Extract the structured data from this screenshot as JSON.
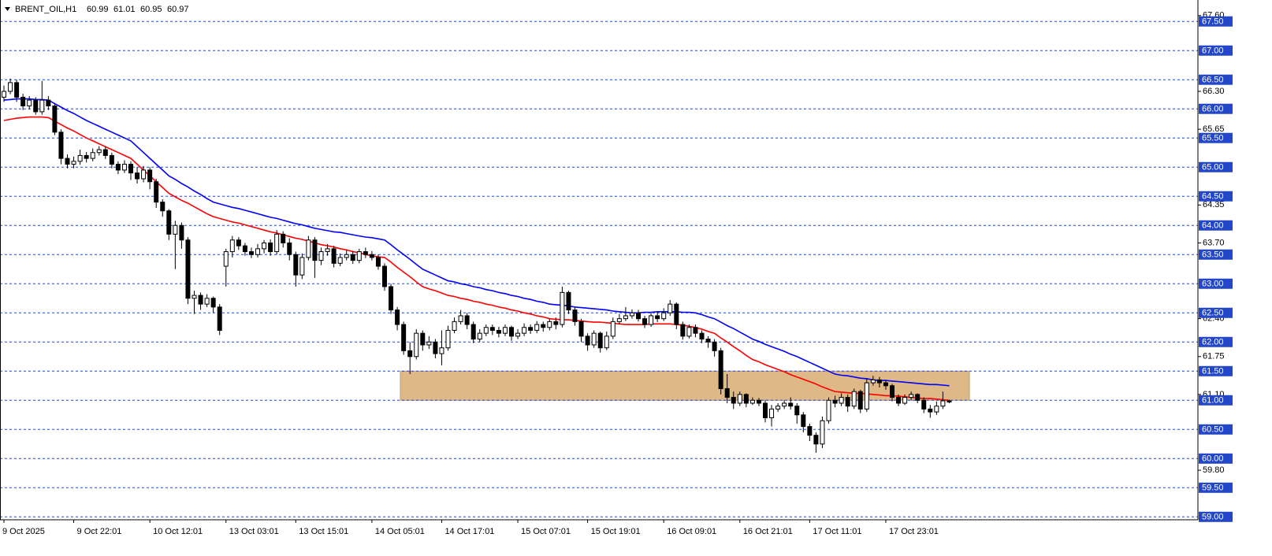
{
  "chart_data": {
    "type": "candlestick",
    "header": {
      "symbol": "BRENT_OIL,H1",
      "values": [
        60.99,
        61.01,
        60.95,
        60.97
      ]
    },
    "categories": [
      "9 Oct 2025",
      null,
      null,
      null,
      null,
      null,
      null,
      null,
      null,
      null,
      null,
      "9 Oct 22:01",
      null,
      null,
      null,
      null,
      null,
      null,
      null,
      null,
      null,
      null,
      null,
      "10 Oct 12:01",
      null,
      null,
      null,
      null,
      null,
      null,
      null,
      null,
      null,
      null,
      null,
      "13 Oct 03:01",
      null,
      null,
      null,
      null,
      null,
      null,
      null,
      null,
      null,
      null,
      "13 Oct 15:01",
      null,
      null,
      null,
      null,
      null,
      null,
      null,
      null,
      null,
      null,
      null,
      "14 Oct 05:01",
      null,
      null,
      null,
      null,
      null,
      null,
      null,
      null,
      null,
      null,
      "14 Oct 17:01",
      null,
      null,
      null,
      null,
      null,
      null,
      null,
      null,
      null,
      null,
      null,
      "15 Oct 07:01",
      null,
      null,
      null,
      null,
      null,
      null,
      null,
      null,
      null,
      null,
      "15 Oct 19:01",
      null,
      null,
      null,
      null,
      null,
      null,
      null,
      null,
      null,
      null,
      null,
      "16 Oct 09:01",
      null,
      null,
      null,
      null,
      null,
      null,
      null,
      null,
      null,
      null,
      null,
      "16 Oct 21:01",
      null,
      null,
      null,
      null,
      null,
      null,
      null,
      null,
      null,
      null,
      "17 Oct 11:01",
      null,
      null,
      null,
      null,
      null,
      null,
      null,
      null,
      null,
      null,
      null,
      "17 Oct 23:01",
      null,
      null,
      null,
      null,
      null,
      null,
      null,
      null,
      null,
      null
    ],
    "open": [
      66.2,
      66.3,
      66.45,
      66.2,
      66.05,
      66.15,
      65.95,
      66.15,
      66.05,
      65.6,
      65.15,
      65.05,
      65.1,
      65.2,
      65.15,
      65.25,
      65.3,
      65.2,
      65.05,
      64.95,
      65.05,
      64.9,
      64.8,
      64.95,
      64.75,
      64.4,
      64.25,
      63.85,
      64.0,
      63.75,
      62.75,
      62.8,
      62.65,
      62.75,
      62.6,
      63.3,
      63.55,
      63.75,
      63.65,
      63.55,
      63.5,
      63.6,
      63.7,
      63.55,
      63.85,
      63.7,
      63.5,
      63.15,
      63.45,
      63.75,
      63.4,
      63.55,
      63.6,
      63.35,
      63.45,
      63.5,
      63.4,
      63.55,
      63.5,
      63.45,
      63.3,
      62.95,
      62.55,
      62.3,
      61.85,
      61.75,
      62.15,
      61.95,
      62.0,
      61.8,
      61.9,
      62.2,
      62.35,
      62.45,
      62.3,
      62.05,
      62.15,
      62.25,
      62.2,
      62.15,
      62.25,
      62.1,
      62.15,
      62.25,
      62.2,
      62.3,
      62.25,
      62.35,
      62.3,
      62.85,
      62.55,
      62.35,
      62.1,
      61.95,
      62.15,
      61.9,
      62.1,
      62.35,
      62.4,
      62.45,
      62.5,
      62.4,
      62.3,
      62.45,
      62.4,
      62.5,
      62.65,
      62.3,
      62.1,
      62.25,
      62.15,
      62.05,
      62.0,
      61.85,
      61.2,
      61.05,
      60.95,
      61.1,
      60.95,
      61.0,
      60.95,
      60.7,
      60.85,
      60.9,
      60.95,
      60.9,
      60.75,
      60.55,
      60.4,
      60.25,
      60.65,
      61.0,
      60.95,
      61.05,
      60.9,
      61.15,
      60.85,
      61.3,
      61.35,
      61.3,
      61.25,
      61.05,
      60.95,
      61.05,
      61.1,
      61.0,
      60.85,
      60.8,
      60.9,
      60.99
    ],
    "high": [
      66.4,
      66.52,
      66.5,
      66.26,
      66.22,
      66.2,
      66.48,
      66.22,
      66.1,
      65.65,
      65.22,
      65.18,
      65.3,
      65.26,
      65.32,
      65.36,
      65.36,
      65.25,
      65.1,
      65.12,
      65.1,
      65.0,
      65.02,
      65.0,
      64.8,
      64.45,
      64.28,
      64.08,
      64.05,
      63.8,
      62.88,
      62.85,
      62.82,
      62.78,
      62.65,
      63.6,
      63.82,
      63.8,
      63.7,
      63.62,
      63.68,
      63.75,
      63.76,
      63.92,
      63.9,
      63.78,
      63.55,
      63.52,
      63.82,
      63.8,
      63.62,
      63.68,
      63.65,
      63.52,
      63.58,
      63.56,
      63.6,
      63.62,
      63.56,
      63.5,
      63.35,
      63.0,
      62.6,
      62.35,
      62.0,
      62.22,
      62.2,
      62.1,
      62.05,
      62.2,
      62.28,
      62.42,
      62.55,
      62.5,
      62.35,
      62.22,
      62.3,
      62.3,
      62.26,
      62.3,
      62.28,
      62.22,
      62.32,
      62.3,
      62.36,
      62.35,
      62.4,
      62.42,
      62.95,
      62.88,
      62.6,
      62.4,
      62.15,
      62.2,
      62.18,
      62.18,
      62.42,
      62.48,
      62.6,
      62.56,
      62.55,
      62.45,
      62.5,
      62.52,
      62.58,
      62.72,
      62.68,
      62.35,
      62.3,
      62.3,
      62.2,
      62.1,
      62.05,
      61.9,
      61.45,
      61.15,
      61.15,
      61.12,
      61.05,
      61.04,
      61.0,
      60.92,
      60.95,
      61.0,
      61.05,
      60.95,
      60.8,
      60.6,
      60.45,
      60.72,
      61.05,
      61.08,
      61.12,
      61.1,
      61.2,
      61.18,
      61.38,
      61.42,
      61.4,
      61.35,
      61.28,
      61.1,
      61.1,
      61.15,
      61.12,
      61.05,
      60.92,
      60.98,
      61.15,
      61.01
    ],
    "low": [
      66.12,
      66.25,
      66.12,
      65.98,
      65.99,
      65.9,
      65.9,
      65.98,
      65.55,
      65.05,
      64.98,
      64.98,
      65.04,
      65.08,
      65.1,
      65.2,
      65.14,
      64.98,
      64.88,
      64.9,
      64.78,
      64.72,
      64.74,
      64.62,
      64.3,
      64.15,
      63.75,
      63.25,
      63.6,
      62.65,
      62.48,
      62.55,
      62.6,
      62.5,
      62.12,
      62.95,
      63.45,
      63.58,
      63.48,
      63.44,
      63.45,
      63.52,
      63.48,
      63.5,
      63.62,
      63.4,
      62.95,
      63.08,
      63.4,
      63.1,
      63.32,
      63.48,
      63.28,
      63.3,
      63.4,
      63.34,
      63.35,
      63.44,
      63.4,
      63.24,
      62.88,
      62.48,
      62.2,
      61.78,
      61.45,
      61.7,
      61.85,
      61.88,
      61.72,
      61.6,
      61.85,
      62.15,
      62.3,
      62.22,
      61.98,
      62.0,
      62.1,
      62.12,
      62.08,
      62.1,
      62.02,
      62.05,
      62.1,
      62.14,
      62.15,
      62.18,
      62.2,
      62.22,
      62.25,
      62.48,
      62.28,
      62.0,
      61.85,
      61.9,
      61.82,
      61.86,
      62.05,
      62.3,
      62.36,
      62.4,
      62.35,
      62.24,
      62.26,
      62.34,
      62.36,
      62.45,
      62.22,
      62.04,
      62.06,
      62.08,
      61.98,
      61.9,
      61.75,
      61.1,
      60.95,
      60.85,
      60.9,
      60.88,
      60.92,
      60.9,
      60.62,
      60.55,
      60.8,
      60.85,
      60.84,
      60.6,
      60.45,
      60.3,
      60.1,
      60.18,
      60.6,
      60.88,
      60.9,
      60.8,
      60.85,
      60.78,
      60.8,
      61.25,
      61.22,
      61.18,
      60.98,
      60.9,
      60.92,
      61.0,
      60.95,
      60.78,
      60.7,
      60.75,
      60.85,
      60.95
    ],
    "close": [
      66.3,
      66.45,
      66.2,
      66.05,
      66.15,
      65.95,
      66.15,
      66.05,
      65.6,
      65.15,
      65.05,
      65.1,
      65.2,
      65.15,
      65.25,
      65.3,
      65.2,
      65.05,
      64.95,
      65.05,
      64.9,
      64.8,
      64.95,
      64.75,
      64.4,
      64.25,
      63.85,
      64.0,
      63.75,
      62.75,
      62.8,
      62.65,
      62.75,
      62.6,
      62.2,
      63.55,
      63.75,
      63.65,
      63.55,
      63.5,
      63.6,
      63.7,
      63.55,
      63.85,
      63.7,
      63.5,
      63.15,
      63.45,
      63.75,
      63.4,
      63.55,
      63.6,
      63.35,
      63.45,
      63.5,
      63.4,
      63.55,
      63.5,
      63.45,
      63.3,
      62.95,
      62.55,
      62.3,
      61.85,
      61.75,
      62.15,
      61.95,
      62.0,
      61.8,
      61.9,
      62.2,
      62.35,
      62.45,
      62.3,
      62.05,
      62.15,
      62.25,
      62.2,
      62.15,
      62.25,
      62.1,
      62.15,
      62.25,
      62.2,
      62.3,
      62.25,
      62.35,
      62.3,
      62.85,
      62.55,
      62.35,
      62.1,
      61.95,
      62.15,
      61.9,
      62.1,
      62.35,
      62.4,
      62.45,
      62.5,
      62.4,
      62.3,
      62.45,
      62.4,
      62.5,
      62.65,
      62.3,
      62.1,
      62.25,
      62.15,
      62.05,
      62.0,
      61.85,
      61.2,
      61.05,
      60.95,
      61.1,
      60.95,
      61.0,
      60.95,
      60.7,
      60.85,
      60.9,
      60.95,
      60.9,
      60.75,
      60.55,
      60.4,
      60.25,
      60.65,
      61.0,
      60.95,
      61.05,
      60.9,
      61.15,
      60.85,
      61.3,
      61.35,
      61.3,
      61.25,
      61.05,
      60.95,
      61.05,
      61.1,
      61.0,
      60.85,
      60.8,
      60.9,
      60.99,
      60.97
    ],
    "lines": [
      {
        "color": "#0000ff",
        "values": [
          66.15,
          66.16,
          66.17,
          66.17,
          66.17,
          66.16,
          66.16,
          66.15,
          66.09,
          66.03,
          65.97,
          65.92,
          65.86,
          65.8,
          65.75,
          65.7,
          65.65,
          65.6,
          65.55,
          65.5,
          65.45,
          65.35,
          65.25,
          65.15,
          65.05,
          64.95,
          64.85,
          64.79,
          64.72,
          64.66,
          64.59,
          64.53,
          64.46,
          64.4,
          64.37,
          64.34,
          64.31,
          64.29,
          64.26,
          64.23,
          64.2,
          64.17,
          64.14,
          64.12,
          64.09,
          64.06,
          64.03,
          64.01,
          63.98,
          63.95,
          63.93,
          63.91,
          63.89,
          63.88,
          63.86,
          63.84,
          63.82,
          63.8,
          63.79,
          63.77,
          63.75,
          63.67,
          63.58,
          63.5,
          63.42,
          63.33,
          63.25,
          63.2,
          63.15,
          63.1,
          63.05,
          63.03,
          63.0,
          62.98,
          62.95,
          62.93,
          62.9,
          62.88,
          62.85,
          62.83,
          62.8,
          62.78,
          62.75,
          62.73,
          62.7,
          62.68,
          62.65,
          62.64,
          62.63,
          62.62,
          62.6,
          62.59,
          62.58,
          62.57,
          62.56,
          62.55,
          62.53,
          62.52,
          62.51,
          62.5,
          62.5,
          62.51,
          62.51,
          62.52,
          62.52,
          62.52,
          62.52,
          62.51,
          62.51,
          62.5,
          62.47,
          62.43,
          62.4,
          62.34,
          62.28,
          62.23,
          62.17,
          62.11,
          62.05,
          62.01,
          61.96,
          61.92,
          61.88,
          61.84,
          61.79,
          61.75,
          61.7,
          61.65,
          61.6,
          61.55,
          61.5,
          61.45,
          61.43,
          61.42,
          61.4,
          61.38,
          61.37,
          61.35,
          61.34,
          61.34,
          61.33,
          61.32,
          61.31,
          61.3,
          61.29,
          61.28,
          61.27,
          61.27,
          61.26,
          61.25
        ]
      },
      {
        "color": "#ff0000",
        "values": [
          65.8,
          65.82,
          65.84,
          65.85,
          65.86,
          65.86,
          65.86,
          65.85,
          65.79,
          65.73,
          65.67,
          65.62,
          65.56,
          65.5,
          65.45,
          65.4,
          65.35,
          65.3,
          65.25,
          65.2,
          65.15,
          65.05,
          64.95,
          64.85,
          64.75,
          64.65,
          64.55,
          64.49,
          64.43,
          64.38,
          64.32,
          64.26,
          64.2,
          64.15,
          64.12,
          64.09,
          64.06,
          64.04,
          64.01,
          63.98,
          63.95,
          63.92,
          63.89,
          63.87,
          63.84,
          63.81,
          63.78,
          63.76,
          63.73,
          63.7,
          63.67,
          63.65,
          63.63,
          63.6,
          63.58,
          63.55,
          63.53,
          63.5,
          63.48,
          63.46,
          63.45,
          63.37,
          63.28,
          63.2,
          63.12,
          63.03,
          62.95,
          62.91,
          62.88,
          62.84,
          62.8,
          62.78,
          62.75,
          62.73,
          62.7,
          62.68,
          62.65,
          62.63,
          62.6,
          62.58,
          62.55,
          62.53,
          62.5,
          62.48,
          62.45,
          62.43,
          62.4,
          62.39,
          62.38,
          62.38,
          62.37,
          62.36,
          62.35,
          62.34,
          62.34,
          62.33,
          62.32,
          62.31,
          62.3,
          62.3,
          62.3,
          62.3,
          62.31,
          62.31,
          62.31,
          62.31,
          62.3,
          62.29,
          62.27,
          62.25,
          62.22,
          62.18,
          62.15,
          62.07,
          62.0,
          61.92,
          61.85,
          61.77,
          61.7,
          61.66,
          61.61,
          61.57,
          61.53,
          61.49,
          61.44,
          61.4,
          61.36,
          61.32,
          61.28,
          61.23,
          61.19,
          61.15,
          61.14,
          61.13,
          61.12,
          61.12,
          61.11,
          61.1,
          61.09,
          61.08,
          61.08,
          61.07,
          61.06,
          61.05,
          61.04,
          61.03,
          61.03,
          61.02,
          61.01,
          61.0
        ]
      }
    ],
    "zone": {
      "from": 61.0,
      "to": 61.5,
      "color": "#deb887"
    },
    "levels": [
      {
        "value": 67.5,
        "label": "67.50"
      },
      {
        "value": 67.0,
        "label": "67.00"
      },
      {
        "value": 66.5,
        "label": "66.50"
      },
      {
        "value": 66.0,
        "label": "66.00"
      },
      {
        "value": 65.5,
        "label": "65.50"
      },
      {
        "value": 65.0,
        "label": "65.00"
      },
      {
        "value": 64.5,
        "label": "64.50"
      },
      {
        "value": 64.0,
        "label": "64.00"
      },
      {
        "value": 63.5,
        "label": "63.50"
      },
      {
        "value": 63.0,
        "label": "63.00"
      },
      {
        "value": 62.5,
        "label": "62.50"
      },
      {
        "value": 62.0,
        "label": "62.00"
      },
      {
        "value": 61.5,
        "label": "61.50"
      },
      {
        "value": 61.0,
        "label": "61.00"
      },
      {
        "value": 60.5,
        "label": "60.50"
      },
      {
        "value": 60.0,
        "label": "60.00"
      },
      {
        "value": 59.5,
        "label": "59.50"
      },
      {
        "value": 59.0,
        "label": "59.00"
      }
    ],
    "level_color": "#2347c8",
    "ylim": [
      58.95,
      67.8
    ],
    "yticks": [
      {
        "value": 67.6,
        "label": "67.60"
      },
      {
        "value": 66.3,
        "label": "66.30"
      },
      {
        "value": 65.65,
        "label": "65.65"
      },
      {
        "value": 64.35,
        "label": "64.35"
      },
      {
        "value": 63.7,
        "label": "63.70"
      },
      {
        "value": 62.4,
        "label": "62.40"
      },
      {
        "value": 61.75,
        "label": "61.75"
      },
      {
        "value": 61.1,
        "label": "61.10"
      },
      {
        "value": 59.8,
        "label": "59.80"
      }
    ],
    "up_color": "#ffffff",
    "down_color": "#000000"
  }
}
